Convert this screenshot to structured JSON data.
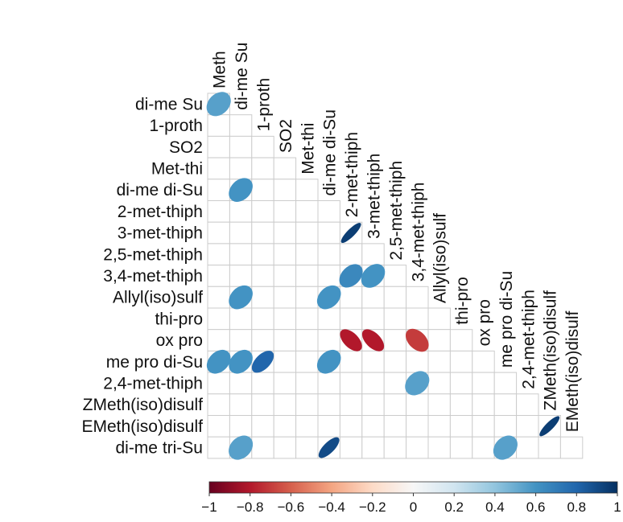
{
  "chart_data": {
    "type": "heatmap",
    "subtype": "correlation-ellipse-lower-triangle",
    "variables": [
      "Meth",
      "di-me Su",
      "1-proth",
      "SO2",
      "Met-thi",
      "di-me di-Su",
      "2-met-thiph",
      "3-met-thiph",
      "2,5-met-thiph",
      "3,4-met-thiph",
      "Allyl(iso)sulf",
      "thi-pro",
      "ox pro",
      "me pro di-Su",
      "2,4-met-thiph",
      "ZMeth(iso)disulf",
      "EMeth(iso)disulf",
      "di-me tri-Su"
    ],
    "cells": [
      {
        "row": "di-me Su",
        "col": "Meth",
        "value": 0.55
      },
      {
        "row": "di-me di-Su",
        "col": "di-me Su",
        "value": 0.6
      },
      {
        "row": "3-met-thiph",
        "col": "2-met-thiph",
        "value": 0.95
      },
      {
        "row": "3,4-met-thiph",
        "col": "2-met-thiph",
        "value": 0.65
      },
      {
        "row": "3,4-met-thiph",
        "col": "3-met-thiph",
        "value": 0.6
      },
      {
        "row": "Allyl(iso)sulf",
        "col": "di-me Su",
        "value": 0.6
      },
      {
        "row": "Allyl(iso)sulf",
        "col": "di-me di-Su",
        "value": 0.6
      },
      {
        "row": "ox pro",
        "col": "2-met-thiph",
        "value": -0.8
      },
      {
        "row": "ox pro",
        "col": "3-met-thiph",
        "value": -0.8
      },
      {
        "row": "ox pro",
        "col": "3,4-met-thiph",
        "value": -0.7
      },
      {
        "row": "me pro di-Su",
        "col": "Meth",
        "value": 0.6
      },
      {
        "row": "me pro di-Su",
        "col": "di-me Su",
        "value": 0.6
      },
      {
        "row": "me pro di-Su",
        "col": "1-proth",
        "value": 0.8
      },
      {
        "row": "me pro di-Su",
        "col": "di-me di-Su",
        "value": 0.6
      },
      {
        "row": "2,4-met-thiph",
        "col": "3,4-met-thiph",
        "value": 0.55
      },
      {
        "row": "EMeth(iso)disulf",
        "col": "ZMeth(iso)disulf",
        "value": 0.95
      },
      {
        "row": "di-me tri-Su",
        "col": "di-me Su",
        "value": 0.55
      },
      {
        "row": "di-me tri-Su",
        "col": "di-me di-Su",
        "value": 0.9
      },
      {
        "row": "di-me tri-Su",
        "col": "me pro di-Su",
        "value": 0.55
      }
    ],
    "colorbar": {
      "range": [
        -1,
        1
      ],
      "ticks": [
        -1,
        -0.8,
        -0.6,
        -0.4,
        -0.2,
        0,
        0.2,
        0.4,
        0.6,
        0.8,
        1
      ],
      "tick_labels": [
        "−1",
        "−0.8",
        "−0.6",
        "−0.4",
        "−0.2",
        "0",
        "0.2",
        "0.4",
        "0.6",
        "0.8",
        "1"
      ],
      "colors": [
        "#67001f",
        "#b2182b",
        "#d6604d",
        "#f4a582",
        "#fddbc7",
        "#f7f7f7",
        "#d1e5f0",
        "#92c5de",
        "#4393c3",
        "#2166ac",
        "#053061"
      ]
    },
    "grid": true,
    "grid_color": "#cccccc",
    "title": "",
    "xlabel": "",
    "ylabel": ""
  }
}
